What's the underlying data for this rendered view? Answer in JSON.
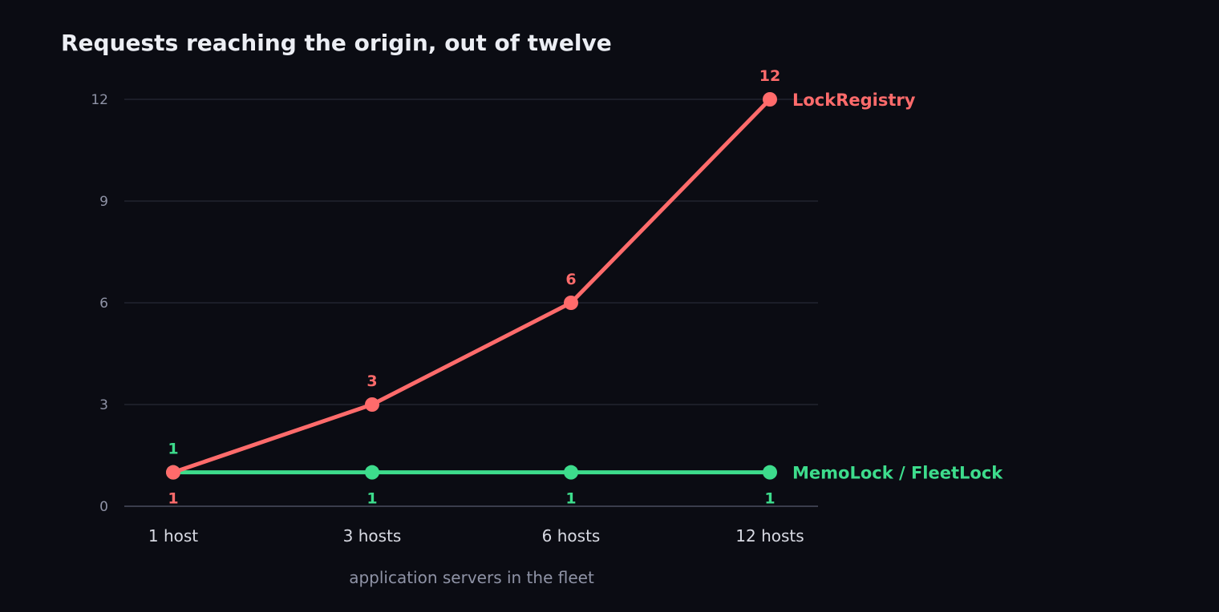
{
  "chart_data": {
    "type": "line",
    "title": "Requests reaching the origin, out of twelve",
    "xlabel": "application servers in the fleet",
    "ylabel": "",
    "categories": [
      "1 host",
      "3 hosts",
      "6 hosts",
      "12 hosts"
    ],
    "ylim": [
      0,
      12
    ],
    "yticks": [
      "0",
      "3",
      "6",
      "9",
      "12"
    ],
    "grid": true,
    "legend": "inline labels at right end of each line",
    "series": [
      {
        "name": "LockRegistry",
        "values": [
          1,
          3,
          6,
          12
        ],
        "color": "#ff6b6b"
      },
      {
        "name": "MemoLock / FleetLock",
        "values": [
          1,
          1,
          1,
          1
        ],
        "color": "#3ddc8c"
      }
    ]
  }
}
